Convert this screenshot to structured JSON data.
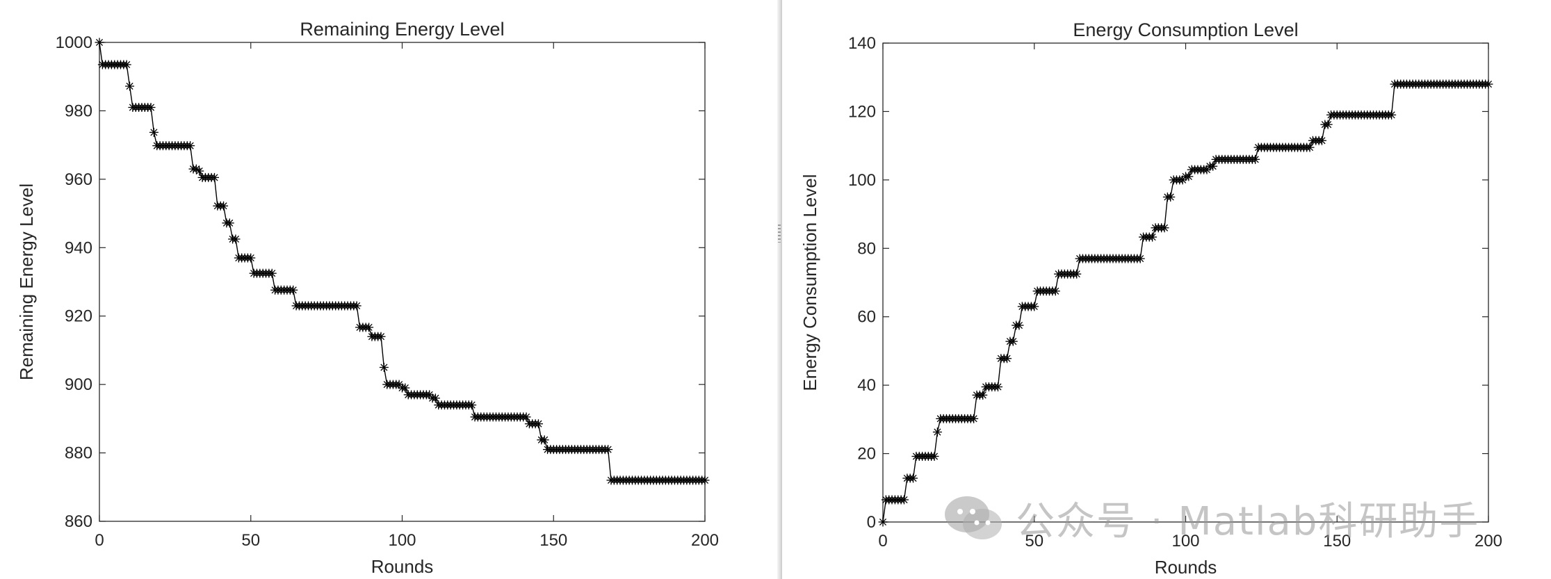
{
  "watermark": {
    "text": "公众号 · Matlab科研助手",
    "icon": "wechat-icon"
  },
  "chart_data": [
    {
      "type": "line",
      "marker": "asterisk",
      "title": "Remaining Energy Level",
      "xlabel": "Rounds",
      "ylabel": "Remaining Energy Level",
      "xlim": [
        0,
        200
      ],
      "ylim": [
        860,
        1000
      ],
      "xticks": [
        0,
        50,
        100,
        150,
        200
      ],
      "yticks": [
        860,
        880,
        900,
        920,
        940,
        960,
        980,
        1000
      ],
      "grid": false,
      "color": "#000000",
      "steps": [
        [
          0,
          1000
        ],
        [
          1,
          993.5
        ],
        [
          10,
          987.2
        ],
        [
          11,
          981
        ],
        [
          18,
          973.7
        ],
        [
          19,
          969.8
        ],
        [
          31,
          963
        ],
        [
          33,
          962.4
        ],
        [
          34,
          960.5
        ],
        [
          39,
          952.2
        ],
        [
          42,
          947.2
        ],
        [
          44,
          942.5
        ],
        [
          46,
          937
        ],
        [
          51,
          932.5
        ],
        [
          58,
          927.6
        ],
        [
          65,
          923
        ],
        [
          86,
          916.7
        ],
        [
          90,
          914
        ],
        [
          94,
          905
        ],
        [
          95,
          900
        ],
        [
          100,
          899
        ],
        [
          102,
          897
        ],
        [
          110,
          896
        ],
        [
          112,
          894
        ],
        [
          124,
          890.5
        ],
        [
          142,
          888.5
        ],
        [
          146,
          883.8
        ],
        [
          148,
          881
        ],
        [
          169,
          872
        ]
      ],
      "n_points": 201
    },
    {
      "type": "line",
      "marker": "asterisk",
      "title": "Energy Consumption Level",
      "xlabel": "Rounds",
      "ylabel": "Energy Consumption Level",
      "xlim": [
        0,
        200
      ],
      "ylim": [
        0,
        140
      ],
      "xticks": [
        0,
        50,
        100,
        150,
        200
      ],
      "yticks": [
        0,
        20,
        40,
        60,
        80,
        100,
        120,
        140
      ],
      "grid": false,
      "color": "#000000",
      "steps": [
        [
          0,
          0
        ],
        [
          1,
          6.5
        ],
        [
          8,
          12.8
        ],
        [
          11,
          19.2
        ],
        [
          18,
          26.3
        ],
        [
          19,
          30.2
        ],
        [
          31,
          37.1
        ],
        [
          34,
          39.5
        ],
        [
          39,
          47.8
        ],
        [
          42,
          52.8
        ],
        [
          44,
          57.5
        ],
        [
          46,
          63
        ],
        [
          51,
          67.5
        ],
        [
          58,
          72.5
        ],
        [
          65,
          77
        ],
        [
          86,
          83.3
        ],
        [
          90,
          86
        ],
        [
          94,
          95
        ],
        [
          96,
          100
        ],
        [
          100,
          101
        ],
        [
          102,
          103
        ],
        [
          108,
          104
        ],
        [
          110,
          106
        ],
        [
          124,
          109.5
        ],
        [
          142,
          111.5
        ],
        [
          146,
          116.2
        ],
        [
          148,
          119
        ],
        [
          169,
          128
        ]
      ],
      "n_points": 201
    }
  ]
}
